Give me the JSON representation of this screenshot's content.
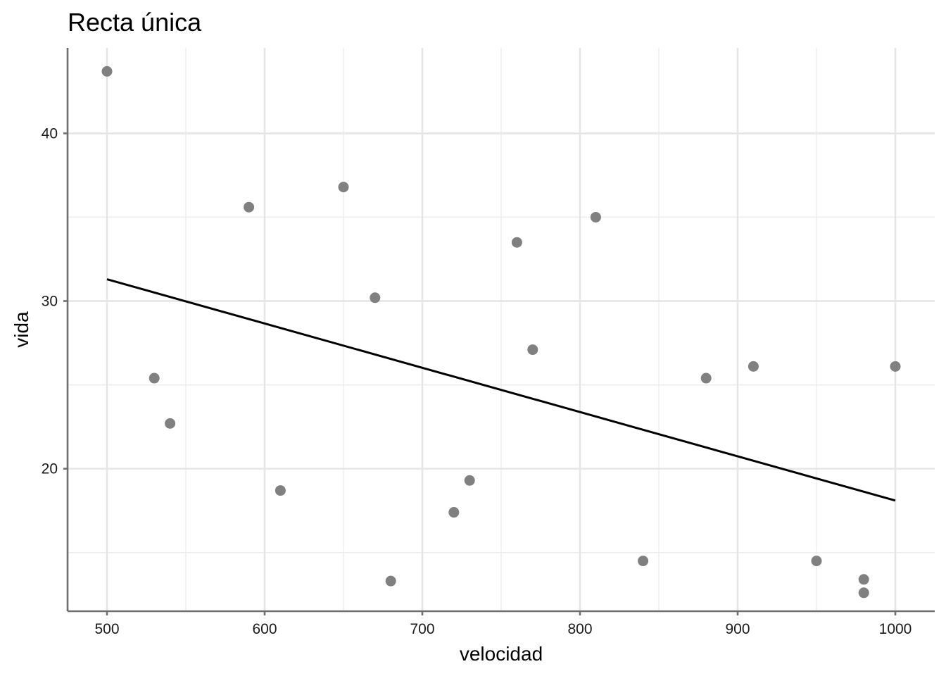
{
  "chart_data": {
    "type": "scatter",
    "title": "Recta única",
    "xlabel": "velocidad",
    "ylabel": "vida",
    "xlim": [
      475,
      1025
    ],
    "ylim": [
      11.5,
      45.1
    ],
    "x_major_ticks": [
      500,
      600,
      700,
      800,
      900,
      1000
    ],
    "x_tick_labels": [
      "500",
      "600",
      "700",
      "800",
      "900",
      "1000"
    ],
    "x_minor_ticks": [
      550,
      650,
      750,
      850,
      950
    ],
    "y_major_ticks": [
      20,
      30,
      40
    ],
    "y_tick_labels": [
      "20",
      "30",
      "40"
    ],
    "y_minor_ticks": [
      15,
      25,
      35
    ],
    "grid": true,
    "point_color": "#808080",
    "line_color": "#000000",
    "points": [
      {
        "x": 500,
        "y": 43.7
      },
      {
        "x": 530,
        "y": 25.4
      },
      {
        "x": 540,
        "y": 22.7
      },
      {
        "x": 590,
        "y": 35.6
      },
      {
        "x": 610,
        "y": 18.7
      },
      {
        "x": 650,
        "y": 36.8
      },
      {
        "x": 670,
        "y": 30.2
      },
      {
        "x": 680,
        "y": 13.3
      },
      {
        "x": 720,
        "y": 17.4
      },
      {
        "x": 730,
        "y": 19.3
      },
      {
        "x": 760,
        "y": 33.5
      },
      {
        "x": 770,
        "y": 27.1
      },
      {
        "x": 810,
        "y": 35.0
      },
      {
        "x": 840,
        "y": 14.5
      },
      {
        "x": 880,
        "y": 25.4
      },
      {
        "x": 910,
        "y": 26.1
      },
      {
        "x": 950,
        "y": 14.5
      },
      {
        "x": 980,
        "y": 13.4
      },
      {
        "x": 980,
        "y": 12.6
      },
      {
        "x": 1000,
        "y": 26.1
      }
    ],
    "fit_line": {
      "x": [
        500,
        1000
      ],
      "y": [
        31.3,
        18.1
      ]
    }
  }
}
